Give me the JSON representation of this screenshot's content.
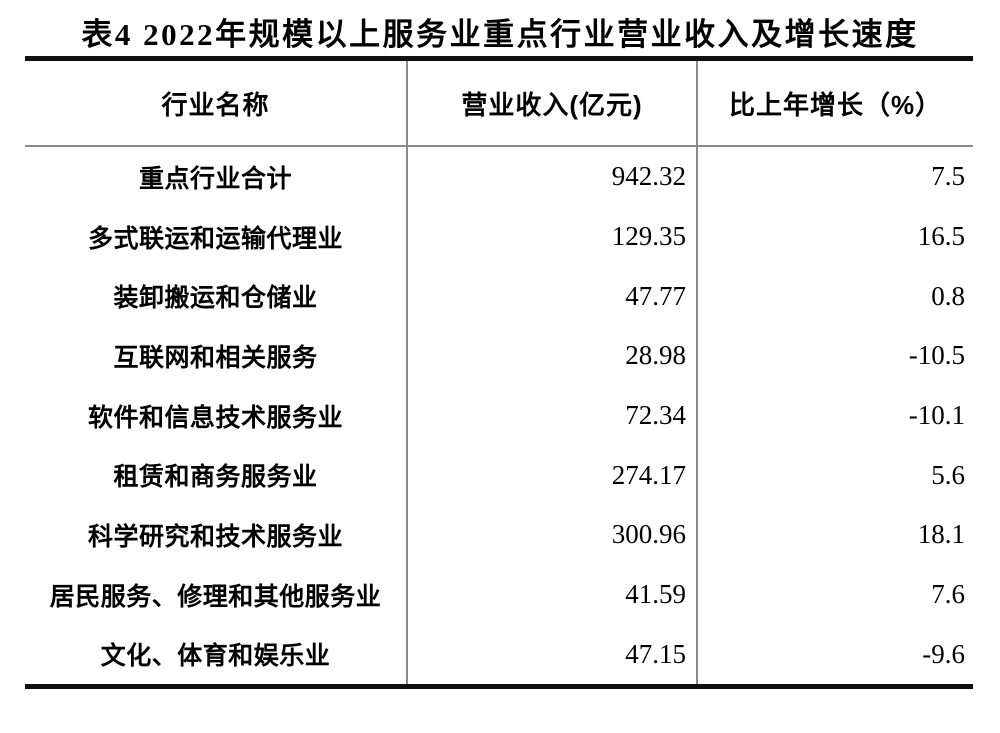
{
  "page": {
    "background": "#ffffff",
    "text_color": "#000000",
    "thick_border_color": "#101010",
    "thin_border_color": "#8a8a8a"
  },
  "title": "表4 2022年规模以上服务业重点行业营业收入及增长速度",
  "table": {
    "columns": [
      "行业名称",
      "营业收入(亿元)",
      "比上年增长（%）"
    ],
    "rows": [
      {
        "name": "重点行业合计",
        "revenue": "942.32",
        "growth": "7.5"
      },
      {
        "name": "多式联运和运输代理业",
        "revenue": "129.35",
        "growth": "16.5"
      },
      {
        "name": "装卸搬运和仓储业",
        "revenue": "47.77",
        "growth": "0.8"
      },
      {
        "name": "互联网和相关服务",
        "revenue": "28.98",
        "growth": "-10.5"
      },
      {
        "name": "软件和信息技术服务业",
        "revenue": "72.34",
        "growth": "-10.1"
      },
      {
        "name": "租赁和商务服务业",
        "revenue": "274.17",
        "growth": "5.6"
      },
      {
        "name": "科学研究和技术服务业",
        "revenue": "300.96",
        "growth": "18.1"
      },
      {
        "name": "居民服务、修理和其他服务业",
        "revenue": "41.59",
        "growth": "7.6"
      },
      {
        "name": "文化、体育和娱乐业",
        "revenue": "47.15",
        "growth": "-9.6"
      }
    ]
  },
  "chart_data": {
    "type": "table",
    "title": "表4 2022年规模以上服务业重点行业营业收入及增长速度",
    "columns": [
      "行业名称",
      "营业收入(亿元)",
      "比上年增长（%）"
    ],
    "rows": [
      [
        "重点行业合计",
        942.32,
        7.5
      ],
      [
        "多式联运和运输代理业",
        129.35,
        16.5
      ],
      [
        "装卸搬运和仓储业",
        47.77,
        0.8
      ],
      [
        "互联网和相关服务",
        28.98,
        -10.5
      ],
      [
        "软件和信息技术服务业",
        72.34,
        -10.1
      ],
      [
        "租赁和商务服务业",
        274.17,
        5.6
      ],
      [
        "科学研究和技术服务业",
        300.96,
        18.1
      ],
      [
        "居民服务、修理和其他服务业",
        41.59,
        7.6
      ],
      [
        "文化、体育和娱乐业",
        47.15,
        -9.6
      ]
    ]
  }
}
